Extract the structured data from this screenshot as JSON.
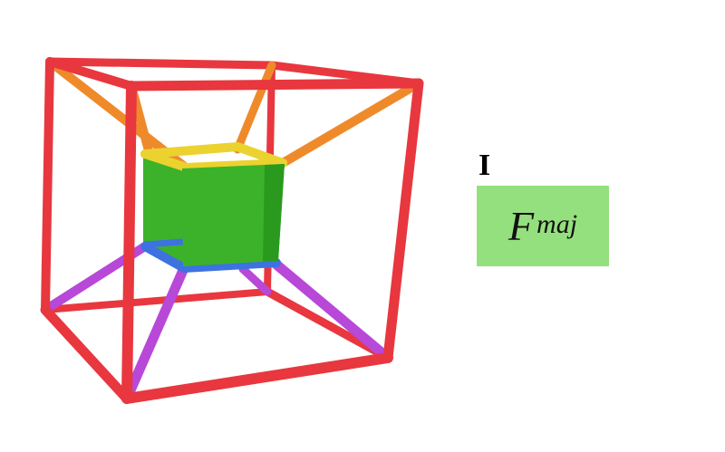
{
  "figure": {
    "colors": {
      "outer_cube": "#e8373e",
      "inner_face": "#3cb22a",
      "inner_top": "#ebd22f",
      "inner_bottom": "#3d72e0",
      "connector_upper": "#ef8a2b",
      "connector_lower": "#b848d8",
      "chord_box": "#95e07e"
    }
  },
  "label": {
    "roman_numeral": "I",
    "chord_root": "F",
    "chord_quality": "maj"
  }
}
